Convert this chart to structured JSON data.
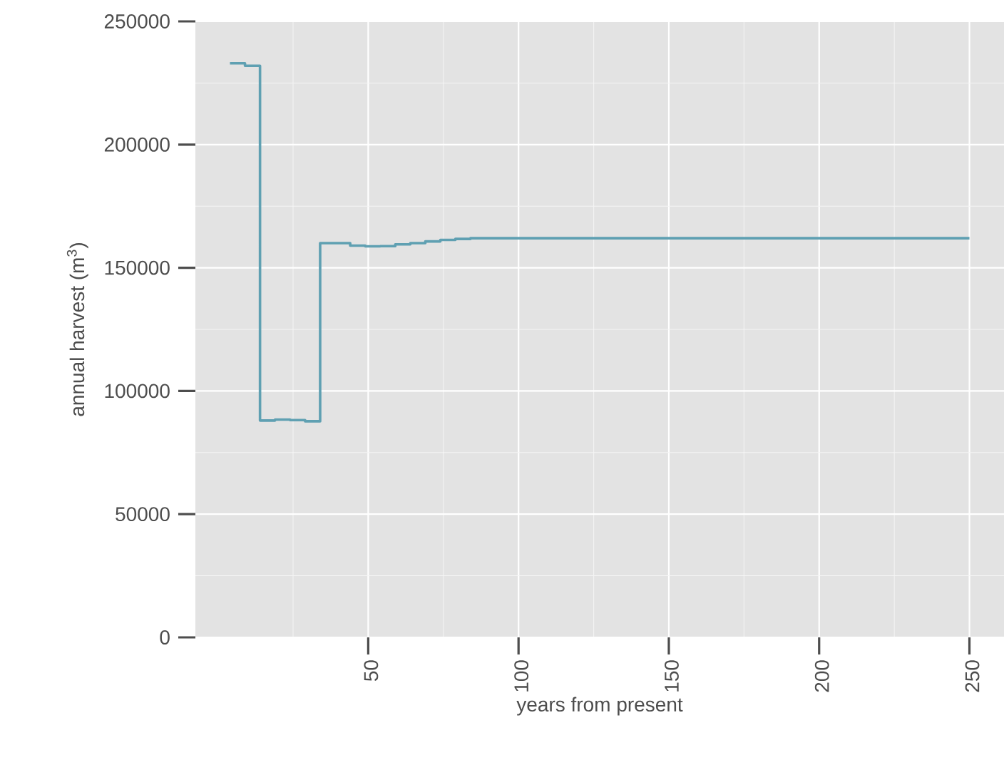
{
  "chart_data": {
    "type": "step",
    "xlabel": "years from present",
    "ylabel": "annual harvest (m$^{3}$)",
    "x": [
      4,
      9,
      14,
      19,
      24,
      29,
      34,
      39,
      44,
      49,
      54,
      59,
      64,
      69,
      74,
      79,
      84,
      250
    ],
    "values": [
      233000,
      232000,
      88000,
      88400,
      88200,
      87700,
      160000,
      160000,
      159000,
      158700,
      158800,
      159500,
      160000,
      160700,
      161300,
      161700,
      162000,
      162000
    ],
    "color": "#5fa0b2",
    "xlim": [
      -7.5,
      261.5
    ],
    "ylim": [
      0,
      250000
    ],
    "xticks": [
      50,
      100,
      150,
      200,
      250
    ],
    "yticks": [
      0,
      50000,
      100000,
      150000,
      200000,
      250000
    ],
    "grid": true
  }
}
